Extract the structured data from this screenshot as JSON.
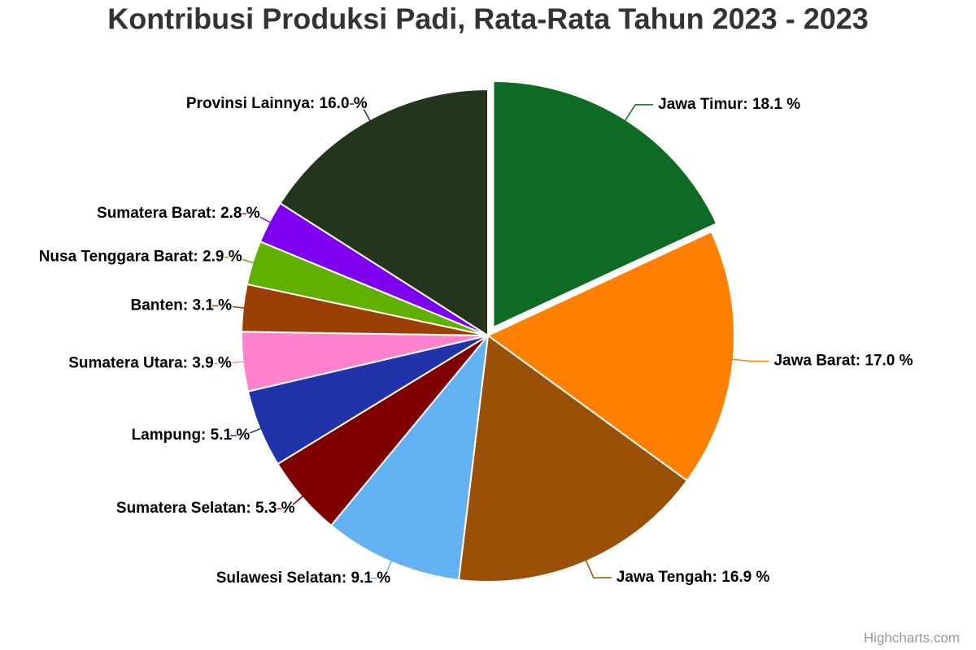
{
  "chart_data": {
    "type": "pie",
    "title": "Kontribusi Produksi Padi, Rata-Rata Tahun 2023 - 2023",
    "credit": "Highcharts.com",
    "values": [
      18.1,
      17.0,
      16.9,
      9.1,
      5.3,
      5.1,
      3.9,
      3.1,
      2.9,
      2.8,
      16.0
    ],
    "value_labels": [
      "Jawa Timur: 18.1 %",
      "Jawa Barat: 17.0 %",
      "Jawa Tengah: 16.9 %",
      "Sulawesi Selatan: 9.1 %",
      "Sumatera Selatan: 5.3 %",
      "Lampung: 5.1 %",
      "Sumatera Utara: 3.9 %",
      "Banten: 3.1 %",
      "Nusa Tenggara Barat: 2.9 %",
      "Sumatera Barat: 2.8 %",
      "Provinsi Lainnya: 16.0 %"
    ],
    "colors": [
      "#0e6b26",
      "#ff8000",
      "#9a5006",
      "#63b1f0",
      "#7f0000",
      "#2233aa",
      "#ff82cf",
      "#9a4004",
      "#61b000",
      "#7f00f0",
      "#23361c"
    ],
    "sliced": [
      0
    ]
  }
}
